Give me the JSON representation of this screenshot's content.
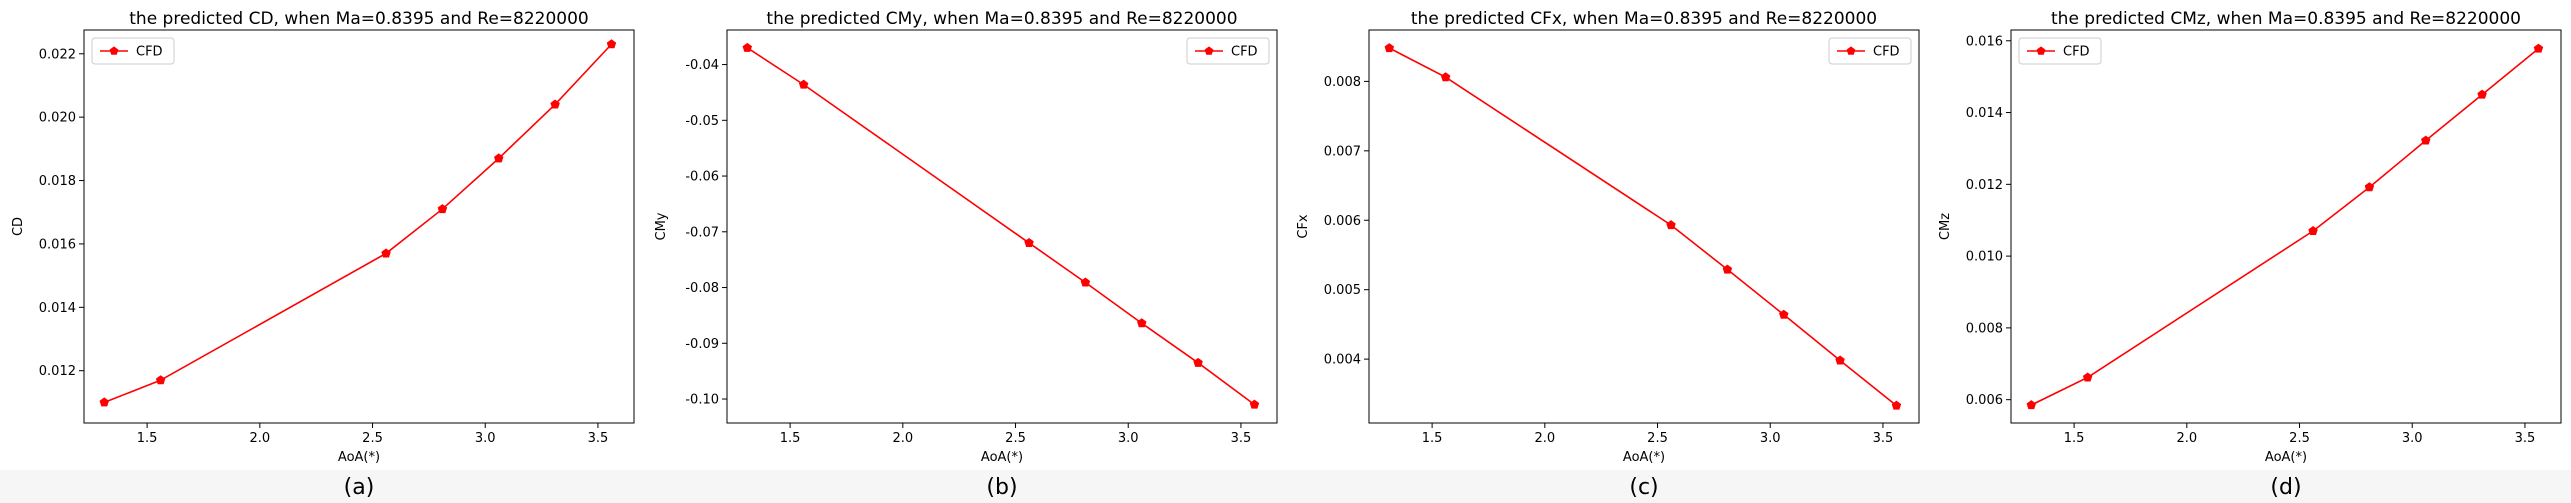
{
  "figure": {
    "chart_data": [
      {
        "type": "line",
        "title": "the predicted CD, when Ma=0.8395 and Re=8220000",
        "xlabel": "AoA(*)",
        "ylabel": "CD",
        "caption": "(a)",
        "xlim": [
          1.22,
          3.66
        ],
        "ylim": [
          0.01035,
          0.02275
        ],
        "xticks": [
          "1.5",
          "2.0",
          "2.5",
          "3.0",
          "3.5"
        ],
        "xtick_values": [
          1.5,
          2.0,
          2.5,
          3.0,
          3.5
        ],
        "yticks": [
          "0.012",
          "0.014",
          "0.016",
          "0.018",
          "0.020",
          "0.022"
        ],
        "ytick_values": [
          0.012,
          0.014,
          0.016,
          0.018,
          0.02,
          0.022
        ],
        "legend_position": "upper-left",
        "series": [
          {
            "name": "CFD",
            "color": "#ff0000",
            "marker": "pentagon",
            "x": [
              1.31,
              1.56,
              2.56,
              2.81,
              3.06,
              3.31,
              3.56
            ],
            "y": [
              0.011,
              0.0117,
              0.0157,
              0.0171,
              0.0187,
              0.0204,
              0.0223
            ]
          }
        ]
      },
      {
        "type": "line",
        "title": "the predicted CMy, when Ma=0.8395 and Re=8220000",
        "xlabel": "AoA(*)",
        "ylabel": "CMy",
        "caption": "(b)",
        "xlim": [
          1.22,
          3.66
        ],
        "ylim": [
          -0.1043,
          -0.0338
        ],
        "xticks": [
          "1.5",
          "2.0",
          "2.5",
          "3.0",
          "3.5"
        ],
        "xtick_values": [
          1.5,
          2.0,
          2.5,
          3.0,
          3.5
        ],
        "yticks": [
          "-0.04",
          "-0.05",
          "-0.06",
          "-0.07",
          "-0.08",
          "-0.09",
          "-0.10"
        ],
        "ytick_values": [
          -0.04,
          -0.05,
          -0.06,
          -0.07,
          -0.08,
          -0.09,
          -0.1
        ],
        "legend_position": "upper-right",
        "series": [
          {
            "name": "CFD",
            "color": "#ff0000",
            "marker": "pentagon",
            "x": [
              1.31,
              1.56,
              2.56,
              2.81,
              3.06,
              3.31,
              3.56
            ],
            "y": [
              -0.037,
              -0.0436,
              -0.072,
              -0.0791,
              -0.0864,
              -0.0935,
              -0.101
            ]
          }
        ]
      },
      {
        "type": "line",
        "title": "the predicted CFx, when Ma=0.8395 and Re=8220000",
        "xlabel": "AoA(*)",
        "ylabel": "CFx",
        "caption": "(c)",
        "xlim": [
          1.22,
          3.66
        ],
        "ylim": [
          0.00308,
          0.00874
        ],
        "xticks": [
          "1.5",
          "2.0",
          "2.5",
          "3.0",
          "3.5"
        ],
        "xtick_values": [
          1.5,
          2.0,
          2.5,
          3.0,
          3.5
        ],
        "yticks": [
          "0.004",
          "0.005",
          "0.006",
          "0.007",
          "0.008"
        ],
        "ytick_values": [
          0.004,
          0.005,
          0.006,
          0.007,
          0.008
        ],
        "legend_position": "upper-right",
        "series": [
          {
            "name": "CFD",
            "color": "#ff0000",
            "marker": "pentagon",
            "x": [
              1.31,
              1.56,
              2.56,
              2.81,
              3.06,
              3.31,
              3.56
            ],
            "y": [
              0.00848,
              0.00806,
              0.00593,
              0.00529,
              0.00464,
              0.00398,
              0.00333
            ]
          }
        ]
      },
      {
        "type": "line",
        "title": "the predicted CMz, when Ma=0.8395 and Re=8220000",
        "xlabel": "AoA(*)",
        "ylabel": "CMz",
        "caption": "(d)",
        "xlim": [
          1.22,
          3.66
        ],
        "ylim": [
          0.00535,
          0.0163
        ],
        "xticks": [
          "1.5",
          "2.0",
          "2.5",
          "3.0",
          "3.5"
        ],
        "xtick_values": [
          1.5,
          2.0,
          2.5,
          3.0,
          3.5
        ],
        "yticks": [
          "0.006",
          "0.008",
          "0.010",
          "0.012",
          "0.014",
          "0.016"
        ],
        "ytick_values": [
          0.006,
          0.008,
          0.01,
          0.012,
          0.014,
          0.016
        ],
        "legend_position": "upper-left",
        "series": [
          {
            "name": "CFD",
            "color": "#ff0000",
            "marker": "pentagon",
            "x": [
              1.31,
              1.56,
              2.56,
              2.81,
              3.06,
              3.31,
              3.56
            ],
            "y": [
              0.00585,
              0.00662,
              0.0107,
              0.01192,
              0.01322,
              0.0145,
              0.01578
            ]
          }
        ]
      }
    ]
  }
}
